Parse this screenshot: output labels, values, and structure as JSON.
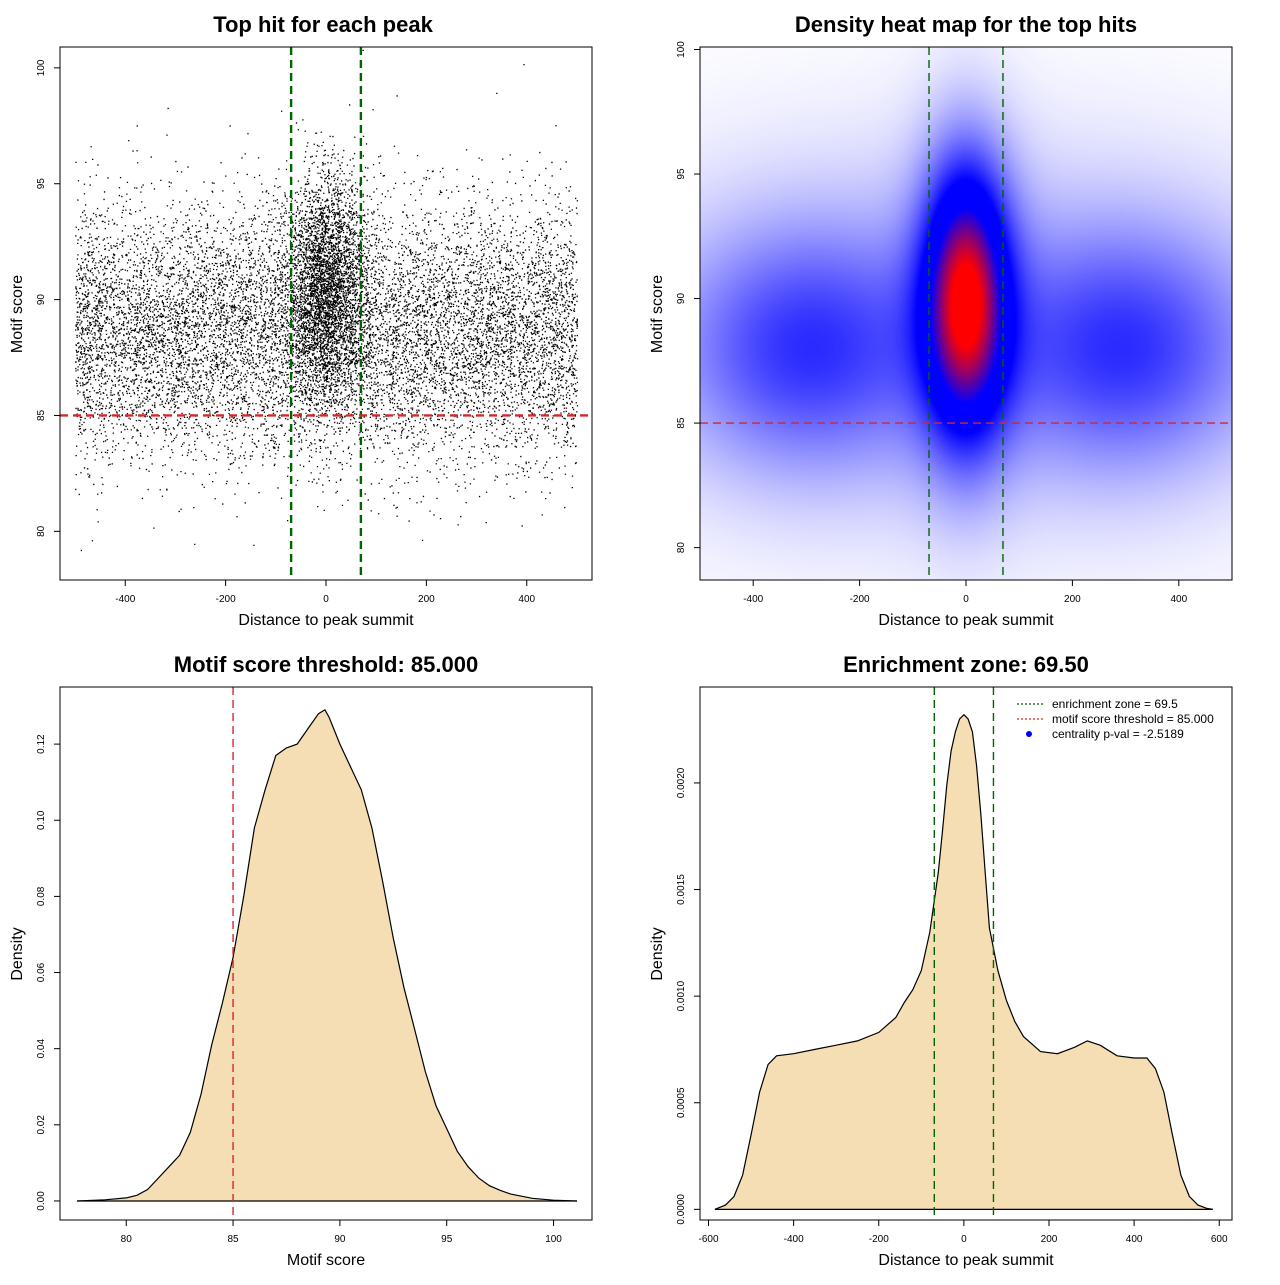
{
  "chart_data": [
    {
      "id": "scatter",
      "type": "scatter",
      "title": "Top hit for each peak",
      "xlabel": "Distance to peak summit",
      "ylabel": "Motif score",
      "xlim": [
        -530,
        530
      ],
      "ylim": [
        77.9,
        100.9
      ],
      "xticks": [
        -400,
        -200,
        0,
        200,
        400
      ],
      "yticks": [
        80,
        85,
        90,
        95,
        100
      ],
      "points_description": "about 15000 top-hit points; x spread uniformly from -500 to 500 with a dense central cluster around 0, y mostly between 82 and 96",
      "background": {
        "count": 11500,
        "x_range": [
          -500,
          500
        ],
        "y_mean": 88.6,
        "y_sd": 2.7
      },
      "cluster": {
        "count": 3500,
        "x_center": 0,
        "x_sd": 38,
        "y_mean": 90.5,
        "y_sd": 2.4
      },
      "hlines": [
        {
          "y": 85,
          "color": "#d62728",
          "style": "dashed"
        }
      ],
      "vlines": [
        {
          "x": -69.5,
          "color": "#006400",
          "style": "dashed"
        },
        {
          "x": 69.5,
          "color": "#006400",
          "style": "dashed"
        }
      ]
    },
    {
      "id": "heatmap",
      "type": "heatmap",
      "title": "Density heat map for the top hits",
      "xlabel": "Distance to peak summit",
      "ylabel": "Motif score",
      "xlim": [
        -500,
        500
      ],
      "ylim": [
        78.7,
        100.1
      ],
      "xticks": [
        -400,
        -200,
        0,
        200,
        400
      ],
      "yticks": [
        80,
        85,
        90,
        95,
        100
      ],
      "density_components": [
        {
          "x": 0,
          "y": 90,
          "sx": 48,
          "sy": 3.2,
          "w": 1.0
        },
        {
          "x": 0,
          "y": 89.5,
          "sx": 70,
          "sy": 4.0,
          "w": 0.35
        },
        {
          "x": -300,
          "y": 88,
          "sx": 150,
          "sy": 3.0,
          "w": 0.32
        },
        {
          "x": 300,
          "y": 88,
          "sx": 150,
          "sy": 3.0,
          "w": 0.32
        },
        {
          "x": 0,
          "y": 88.5,
          "sx": 420,
          "sy": 4.5,
          "w": 0.12
        }
      ],
      "color_scale": [
        "#ffffff",
        "#0000ff",
        "#ff0000"
      ],
      "hlines": [
        {
          "y": 85,
          "color": "#d62728",
          "style": "dashed"
        }
      ],
      "vlines": [
        {
          "x": -69.5,
          "color": "#006400",
          "style": "dashed"
        },
        {
          "x": 69.5,
          "color": "#006400",
          "style": "dashed"
        }
      ]
    },
    {
      "id": "scoredens",
      "type": "area",
      "title": "Motif score threshold: 85.000",
      "xlabel": "Motif score",
      "ylabel": "Density",
      "xlim": [
        76.9,
        101.8
      ],
      "ylim": [
        -0.005,
        0.135
      ],
      "xticks": [
        80,
        85,
        90,
        95,
        100
      ],
      "yticks": [
        0.0,
        0.02,
        0.04,
        0.06,
        0.08,
        0.1,
        0.12
      ],
      "ytick_labels": [
        "0.00",
        "0.02",
        "0.04",
        "0.06",
        "0.08",
        "0.10",
        "0.12"
      ],
      "fill": "#f5deb3",
      "x": [
        77.7,
        79,
        80,
        80.5,
        81,
        81.5,
        82,
        82.5,
        83,
        83.5,
        84,
        84.5,
        85,
        85.5,
        86,
        86.5,
        87,
        87.5,
        88,
        88.5,
        89,
        89.3,
        89.5,
        90,
        90.5,
        91,
        91.5,
        92,
        92.5,
        93,
        93.5,
        94,
        94.5,
        95,
        95.5,
        96,
        96.5,
        97,
        97.5,
        98,
        99,
        100,
        101.1
      ],
      "y": [
        0.0,
        0.0003,
        0.0008,
        0.0015,
        0.003,
        0.006,
        0.009,
        0.012,
        0.018,
        0.028,
        0.041,
        0.052,
        0.064,
        0.08,
        0.098,
        0.108,
        0.117,
        0.119,
        0.12,
        0.124,
        0.128,
        0.129,
        0.127,
        0.12,
        0.114,
        0.108,
        0.098,
        0.084,
        0.069,
        0.056,
        0.045,
        0.034,
        0.025,
        0.019,
        0.013,
        0.009,
        0.006,
        0.004,
        0.0028,
        0.0018,
        0.0007,
        0.0002,
        0.0
      ],
      "vlines": [
        {
          "x": 85,
          "color": "#d62728",
          "style": "dashed"
        }
      ]
    },
    {
      "id": "distdens",
      "type": "area",
      "title": "Enrichment zone: 69.50",
      "xlabel": "Distance to peak summit",
      "ylabel": "Density",
      "xlim": [
        -620,
        630
      ],
      "ylim": [
        -5e-05,
        0.00245
      ],
      "xticks": [
        -600,
        -400,
        -200,
        0,
        200,
        400,
        600
      ],
      "yticks": [
        0.0,
        0.0005,
        0.001,
        0.0015,
        0.002
      ],
      "ytick_labels": [
        "0.0000",
        "0.0005",
        "0.0010",
        "0.0015",
        "0.0020"
      ],
      "fill": "#f5deb3",
      "x": [
        -585,
        -560,
        -540,
        -520,
        -500,
        -480,
        -460,
        -440,
        -400,
        -350,
        -300,
        -250,
        -200,
        -160,
        -140,
        -120,
        -100,
        -80,
        -60,
        -50,
        -40,
        -30,
        -20,
        -10,
        0,
        10,
        20,
        30,
        40,
        50,
        60,
        80,
        100,
        120,
        140,
        180,
        220,
        260,
        290,
        320,
        360,
        400,
        430,
        450,
        470,
        490,
        510,
        530,
        550,
        570,
        585
      ],
      "y": [
        0.0,
        2e-05,
        6e-05,
        0.00016,
        0.00035,
        0.00055,
        0.00068,
        0.00072,
        0.00073,
        0.00075,
        0.00077,
        0.00079,
        0.00083,
        0.0009,
        0.00097,
        0.00103,
        0.00112,
        0.0013,
        0.00158,
        0.00178,
        0.00199,
        0.00215,
        0.00224,
        0.0023,
        0.00232,
        0.0023,
        0.00224,
        0.00208,
        0.00185,
        0.00158,
        0.00132,
        0.00112,
        0.00098,
        0.00088,
        0.00081,
        0.00074,
        0.00073,
        0.00076,
        0.00079,
        0.00077,
        0.00072,
        0.00071,
        0.00071,
        0.00066,
        0.00055,
        0.00035,
        0.00016,
        6e-05,
        2e-05,
        5e-06,
        0.0
      ],
      "vlines": [
        {
          "x": -69.5,
          "color": "#006400",
          "style": "dashed"
        },
        {
          "x": 69.5,
          "color": "#006400",
          "style": "dashed"
        }
      ],
      "legend": {
        "placement": "top-right",
        "entries": [
          {
            "label": "enrichment zone = 69.5",
            "kind": "line",
            "color": "#006400"
          },
          {
            "label": "motif score threshold = 85.000",
            "kind": "line",
            "color": "#d62728"
          },
          {
            "label": "centrality p-val = -2.5189",
            "kind": "point",
            "color": "#0000ff"
          }
        ]
      }
    }
  ]
}
